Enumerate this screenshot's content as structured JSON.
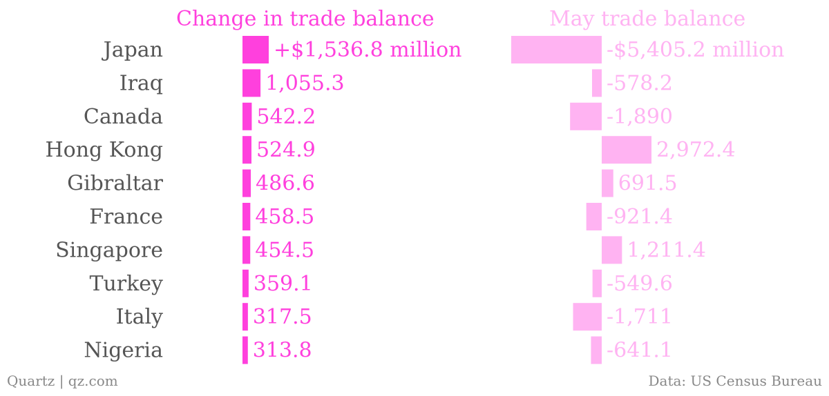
{
  "chart_data": {
    "type": "bar",
    "orientation": "horizontal",
    "categories": [
      "Japan",
      "Iraq",
      "Canada",
      "Hong Kong",
      "Gibraltar",
      "France",
      "Singapore",
      "Turkey",
      "Italy",
      "Nigeria"
    ],
    "series": [
      {
        "name": "Change in trade balance",
        "values": [
          1536.8,
          1055.3,
          542.2,
          524.9,
          486.6,
          458.5,
          454.5,
          359.1,
          317.5,
          313.8
        ],
        "labels": [
          "+$1,536.8 million",
          "1,055.3",
          "542.2",
          "524.9",
          "486.6",
          "458.5",
          "454.5",
          "359.1",
          "317.5",
          "313.8"
        ],
        "color": "#ff40dd"
      },
      {
        "name": "May trade balance",
        "values": [
          -5405.2,
          -578.2,
          -1890,
          2972.4,
          691.5,
          -921.4,
          1211.4,
          -549.6,
          -1711,
          -641.1
        ],
        "labels": [
          "-$5,405.2 million",
          "-578.2",
          "-1,890",
          "2,972.4",
          "691.5",
          "-921.4",
          "1,211.4",
          "-549.6",
          "-1,711",
          "-641.1"
        ],
        "color": "#ffb3f2"
      }
    ]
  },
  "footer": {
    "source_left": "Quartz | qz.com",
    "source_right": "Data: US Census Bureau"
  }
}
